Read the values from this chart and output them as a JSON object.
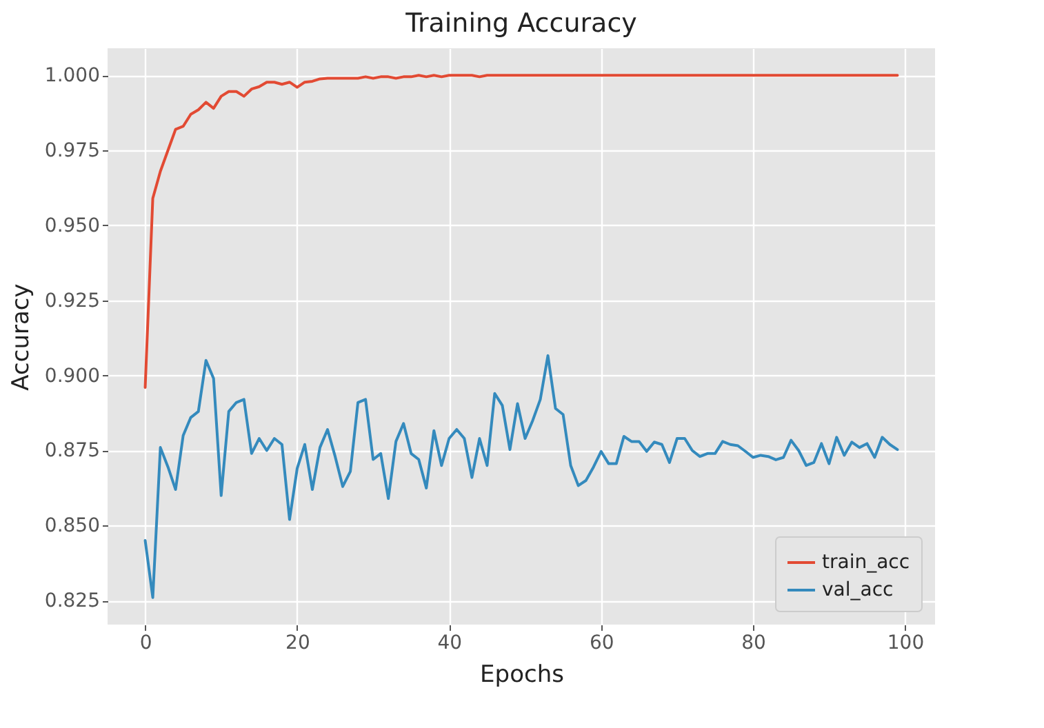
{
  "chart_data": {
    "type": "line",
    "title": "Training Accuracy",
    "xlabel": "Epochs",
    "ylabel": "Accuracy",
    "x": [
      0,
      1,
      2,
      3,
      4,
      5,
      6,
      7,
      8,
      9,
      10,
      11,
      12,
      13,
      14,
      15,
      16,
      17,
      18,
      19,
      20,
      21,
      22,
      23,
      24,
      25,
      26,
      27,
      28,
      29,
      30,
      31,
      32,
      33,
      34,
      35,
      36,
      37,
      38,
      39,
      40,
      41,
      42,
      43,
      44,
      45,
      46,
      47,
      48,
      49,
      50,
      51,
      52,
      53,
      54,
      55,
      56,
      57,
      58,
      59,
      60,
      61,
      62,
      63,
      64,
      65,
      66,
      67,
      68,
      69,
      70,
      71,
      72,
      73,
      74,
      75,
      76,
      77,
      78,
      79,
      80,
      81,
      82,
      83,
      84,
      85,
      86,
      87,
      88,
      89,
      90,
      91,
      92,
      93,
      94,
      95,
      96,
      97,
      98,
      99
    ],
    "series": [
      {
        "name": "train_acc",
        "color": "#e24a33",
        "values": [
          0.896,
          0.959,
          0.968,
          0.975,
          0.982,
          0.983,
          0.987,
          0.9885,
          0.991,
          0.989,
          0.993,
          0.9946,
          0.9946,
          0.993,
          0.9954,
          0.9962,
          0.9977,
          0.9977,
          0.997,
          0.9977,
          0.996,
          0.9977,
          0.998,
          0.9988,
          0.999,
          0.999,
          0.999,
          0.999,
          0.999,
          0.9995,
          0.999,
          0.9995,
          0.9995,
          0.999,
          0.9995,
          0.9995,
          1.0,
          0.9995,
          1.0,
          0.9995,
          1.0,
          1.0,
          1.0,
          1.0,
          0.9995,
          1.0,
          1.0,
          1.0,
          1.0,
          1.0,
          1.0,
          1.0,
          1.0,
          1.0,
          1.0,
          1.0,
          1.0,
          1.0,
          1.0,
          1.0,
          1.0,
          1.0,
          1.0,
          1.0,
          1.0,
          1.0,
          1.0,
          1.0,
          1.0,
          1.0,
          1.0,
          1.0,
          1.0,
          1.0,
          1.0,
          1.0,
          1.0,
          1.0,
          1.0,
          1.0,
          1.0,
          1.0,
          1.0,
          1.0,
          1.0,
          1.0,
          1.0,
          1.0,
          1.0,
          1.0,
          1.0,
          1.0,
          1.0,
          1.0,
          1.0,
          1.0,
          1.0,
          1.0,
          1.0,
          1.0
        ]
      },
      {
        "name": "val_acc",
        "color": "#348abd",
        "values": [
          0.845,
          0.826,
          0.876,
          0.8695,
          0.862,
          0.88,
          0.886,
          0.888,
          0.905,
          0.899,
          0.86,
          0.888,
          0.891,
          0.892,
          0.874,
          0.879,
          0.875,
          0.879,
          0.877,
          0.852,
          0.869,
          0.877,
          0.862,
          0.876,
          0.882,
          0.873,
          0.863,
          0.868,
          0.891,
          0.892,
          0.872,
          0.874,
          0.859,
          0.878,
          0.884,
          0.874,
          0.872,
          0.8625,
          0.8816,
          0.87,
          0.879,
          0.882,
          0.879,
          0.866,
          0.879,
          0.87,
          0.894,
          0.89,
          0.8753,
          0.8906,
          0.879,
          0.885,
          0.892,
          0.9066,
          0.889,
          0.887,
          0.87,
          0.8633,
          0.865,
          0.8695,
          0.8747,
          0.8706,
          0.8706,
          0.8797,
          0.878,
          0.878,
          0.8747,
          0.8778,
          0.877,
          0.871,
          0.879,
          0.879,
          0.875,
          0.873,
          0.874,
          0.874,
          0.878,
          0.877,
          0.8766,
          0.8747,
          0.8727,
          0.8734,
          0.873,
          0.8719,
          0.8727,
          0.8784,
          0.875,
          0.87,
          0.871,
          0.8773,
          0.8706,
          0.8794,
          0.8734,
          0.8778,
          0.876,
          0.8773,
          0.8727,
          0.8794,
          0.877,
          0.8753
        ]
      }
    ],
    "xlim": [
      -4.95,
      103.95
    ],
    "xticks": [
      0,
      20,
      40,
      60,
      80,
      100
    ],
    "ylim": [
      0.817,
      1.009
    ],
    "yticks": [
      {
        "value": 0.825,
        "label": "0.825"
      },
      {
        "value": 0.85,
        "label": "0.850"
      },
      {
        "value": 0.875,
        "label": "0.875"
      },
      {
        "value": 0.9,
        "label": "0.900"
      },
      {
        "value": 0.925,
        "label": "0.925"
      },
      {
        "value": 0.95,
        "label": "0.950"
      },
      {
        "value": 0.975,
        "label": "0.975"
      },
      {
        "value": 1.0,
        "label": "1.000"
      }
    ],
    "grid": true,
    "legend": "bottom right",
    "line_style": "solid",
    "marker": "none"
  }
}
